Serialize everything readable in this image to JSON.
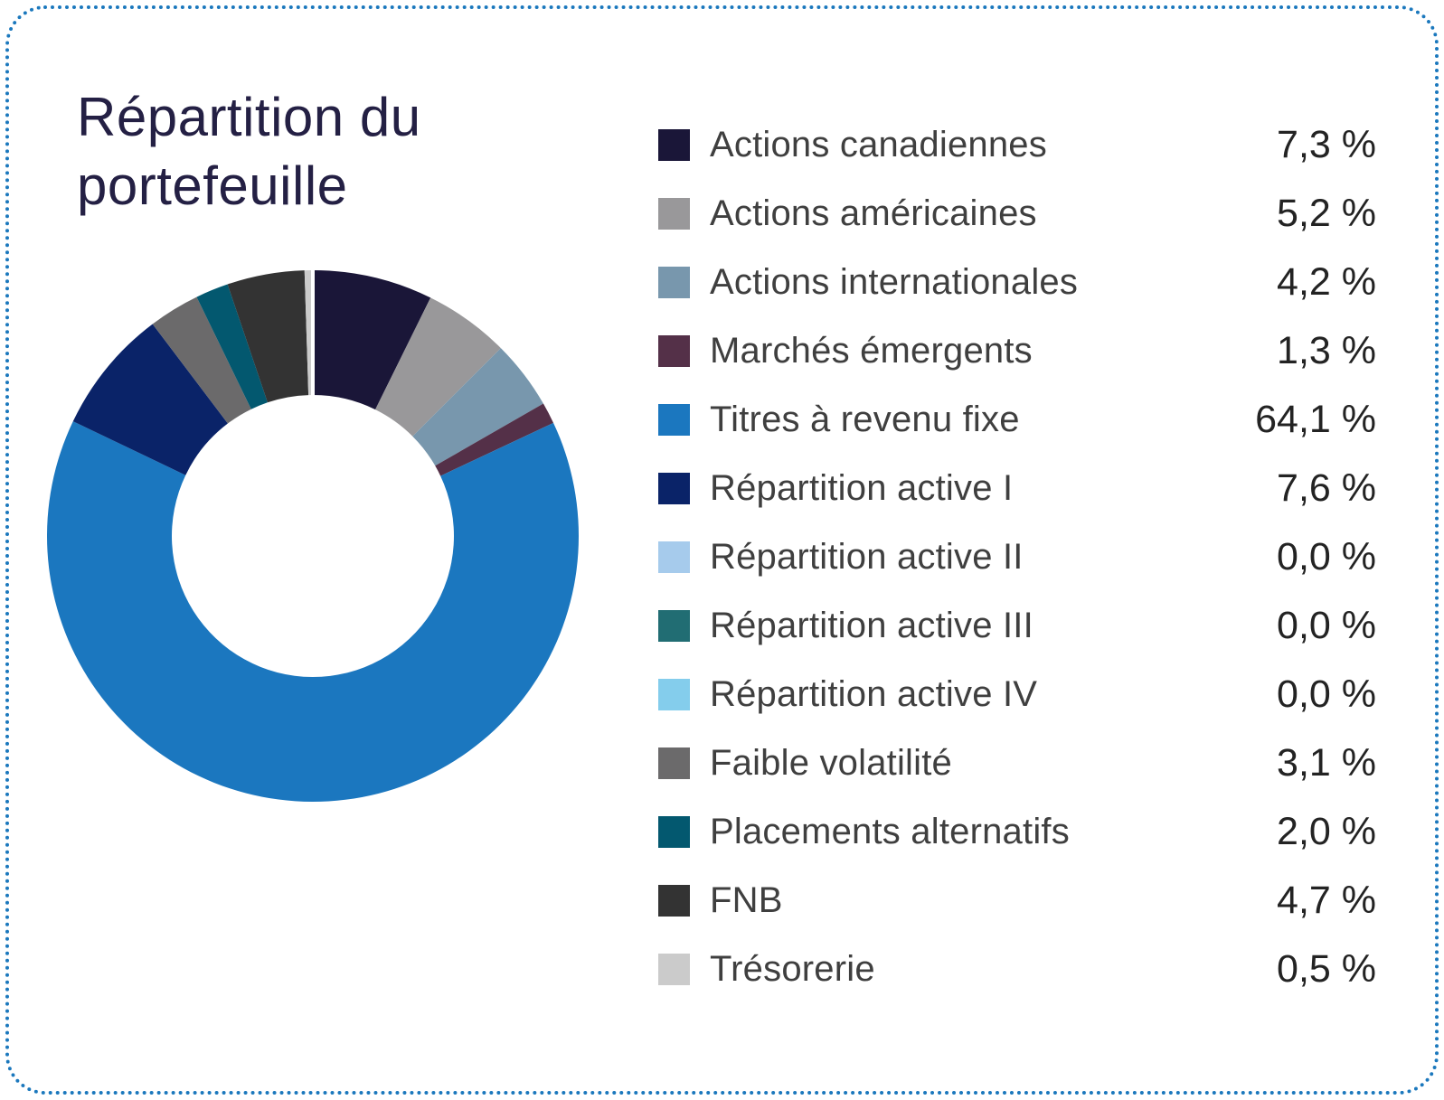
{
  "card": {
    "title": "Répartition du portefeuille",
    "title_color": "#242044",
    "border_color": "#1b78bd",
    "background_color": "#ffffff"
  },
  "chart_data": {
    "type": "pie",
    "subtype": "donut",
    "title": "Répartition du portefeuille",
    "start_angle_deg": 0,
    "direction": "clockwise",
    "inner_radius_ratio": 0.53,
    "legend_position": "right",
    "categories": [
      "Actions canadiennes",
      "Actions américaines",
      "Actions internationales",
      "Marchés émergents",
      "Titres à revenu fixe",
      "Répartition active I",
      "Répartition active II",
      "Répartition active III",
      "Répartition active IV",
      "Faible volatilité",
      "Placements alternatifs",
      "FNB",
      "Trésorerie"
    ],
    "values": [
      7.3,
      5.2,
      4.2,
      1.3,
      64.1,
      7.6,
      0.0,
      0.0,
      0.0,
      3.1,
      2.0,
      4.7,
      0.5
    ],
    "display_values": [
      "7,3 %",
      "5,2 %",
      "4,2 %",
      "1,3 %",
      "64,1 %",
      "7,6 %",
      "0,0 %",
      "0,0 %",
      "0,0 %",
      "3,1 %",
      "2,0 %",
      "4,7 %",
      "0,5 %"
    ],
    "colors": [
      "#1a1638",
      "#99989a",
      "#7897ad",
      "#543048",
      "#1b77bf",
      "#0a2368",
      "#a6cbec",
      "#216d73",
      "#84cdec",
      "#6b6a6b",
      "#03586f",
      "#333333",
      "#cbcbcb"
    ]
  }
}
